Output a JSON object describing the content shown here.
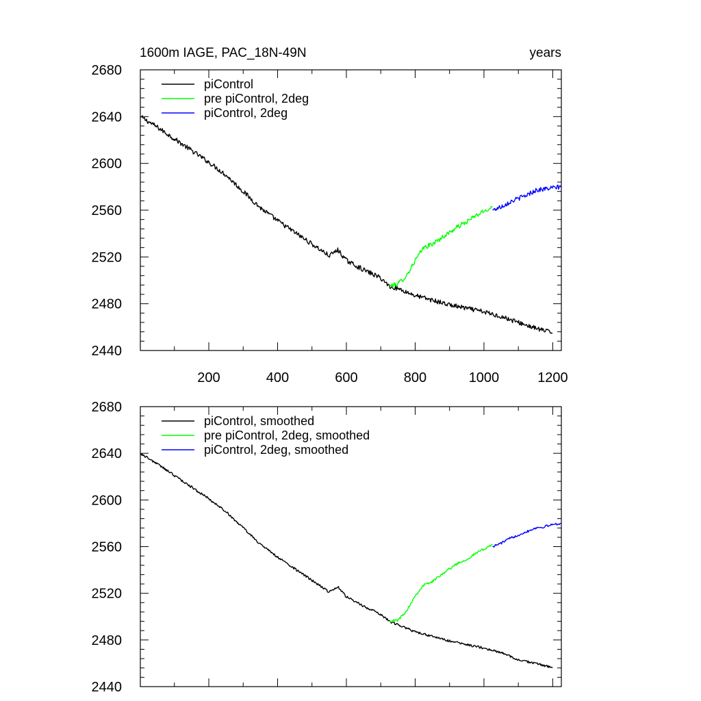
{
  "figure": {
    "title_left": "1600m IAGE, PAC_18N-49N",
    "title_right": "years"
  },
  "colors": {
    "piControl": "#000000",
    "pre_piControl_2deg": "#00ff00",
    "piControl_2deg": "#0000ff"
  },
  "chart_data": [
    {
      "type": "line",
      "title": "1600m IAGE, PAC_18N-49N",
      "units": "years",
      "xlim": [
        1,
        1225
      ],
      "ylim": [
        2440,
        2680
      ],
      "x_ticks": [
        200,
        400,
        600,
        800,
        1000,
        1200
      ],
      "x_tick_labels": [
        "200",
        "400",
        "600",
        "800",
        "1000",
        "1200"
      ],
      "y_ticks": [
        2440,
        2480,
        2520,
        2560,
        2600,
        2640,
        2680
      ],
      "y_tick_labels": [
        "2440",
        "2480",
        "2520",
        "2560",
        "2600",
        "2640",
        "2680"
      ],
      "grid": false,
      "legend_position": "top-left",
      "series": [
        {
          "name": "piControl",
          "color": "#000000",
          "x": [
            1,
            50,
            100,
            150,
            200,
            250,
            300,
            350,
            400,
            450,
            500,
            550,
            575,
            600,
            650,
            700,
            725,
            750,
            800,
            850,
            900,
            950,
            1000,
            1050,
            1100,
            1150,
            1200
          ],
          "y": [
            2640,
            2631,
            2621,
            2611,
            2601,
            2590,
            2576,
            2562,
            2551,
            2541,
            2531,
            2521,
            2526,
            2517,
            2509,
            2502,
            2495,
            2493,
            2487,
            2483,
            2479,
            2476,
            2473,
            2469,
            2464,
            2459,
            2455
          ]
        },
        {
          "name": "pre piControl, 2deg",
          "color": "#00ff00",
          "x": [
            725,
            750,
            775,
            800,
            825,
            850,
            875,
            900,
            925,
            950,
            975,
            1000,
            1025
          ],
          "y": [
            2495,
            2497,
            2504,
            2517,
            2528,
            2531,
            2536,
            2541,
            2546,
            2550,
            2555,
            2559,
            2563
          ]
        },
        {
          "name": "piControl, 2deg",
          "color": "#0000ff",
          "x": [
            1025,
            1050,
            1075,
            1100,
            1125,
            1150,
            1175,
            1200,
            1225
          ],
          "y": [
            2560,
            2563,
            2567,
            2570,
            2573,
            2577,
            2578,
            2579,
            2580
          ]
        }
      ]
    },
    {
      "type": "line",
      "xlim": [
        1,
        1225
      ],
      "ylim": [
        2440,
        2680
      ],
      "x_ticks": [
        200,
        400,
        600,
        800,
        1000,
        1200
      ],
      "y_ticks": [
        2440,
        2480,
        2520,
        2560,
        2600,
        2640,
        2680
      ],
      "y_tick_labels": [
        "2440",
        "2480",
        "2520",
        "2560",
        "2600",
        "2640",
        "2680"
      ],
      "grid": false,
      "legend_position": "top-left",
      "series": [
        {
          "name": "piControl, smoothed",
          "color": "#000000",
          "x": [
            1,
            50,
            100,
            150,
            200,
            250,
            300,
            350,
            400,
            450,
            500,
            550,
            575,
            600,
            650,
            700,
            725,
            750,
            800,
            850,
            900,
            950,
            1000,
            1050,
            1100,
            1150,
            1200
          ],
          "y": [
            2640,
            2631,
            2621,
            2611,
            2601,
            2590,
            2576,
            2562,
            2551,
            2541,
            2531,
            2521,
            2526,
            2517,
            2509,
            2502,
            2496,
            2493,
            2487,
            2483,
            2479,
            2476,
            2473,
            2469,
            2463,
            2460,
            2456
          ]
        },
        {
          "name": "pre piControl, 2deg, smoothed",
          "color": "#00ff00",
          "x": [
            725,
            750,
            775,
            800,
            825,
            850,
            875,
            900,
            925,
            950,
            975,
            1000,
            1025
          ],
          "y": [
            2496,
            2497,
            2505,
            2518,
            2527,
            2530,
            2536,
            2541,
            2546,
            2549,
            2554,
            2558,
            2562
          ]
        },
        {
          "name": "piControl, 2deg, smoothed",
          "color": "#0000ff",
          "x": [
            1025,
            1050,
            1075,
            1100,
            1125,
            1150,
            1175,
            1200,
            1225
          ],
          "y": [
            2560,
            2563,
            2567,
            2570,
            2573,
            2576,
            2577,
            2579,
            2580
          ]
        }
      ]
    }
  ]
}
